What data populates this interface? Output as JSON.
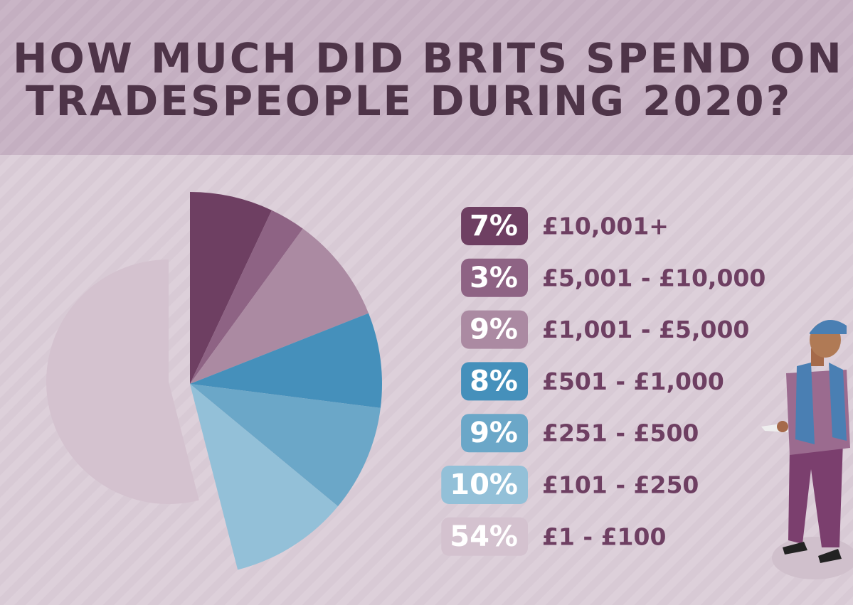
{
  "chart_data": {
    "type": "pie",
    "title_lines": [
      "HOW MUCH DID BRITS SPEND ON",
      "TRADESPEOPLE DURING 2020?"
    ],
    "categories": [
      "£10,001+",
      "£5,001 - £10,000",
      "£1,001 - £5,000",
      "£501 - £1,000",
      "£251 - £500",
      "£101 - £250",
      "£1 - £100"
    ],
    "values": [
      7,
      3,
      9,
      8,
      9,
      10,
      54
    ],
    "value_labels": [
      "7%",
      "3%",
      "9%",
      "8%",
      "9%",
      "10%",
      "54%"
    ],
    "colors": [
      "#6e3f62",
      "#8e6384",
      "#ab8aa2",
      "#4590bb",
      "#6ba7c8",
      "#93c0d8",
      "#d4c2cf"
    ]
  }
}
